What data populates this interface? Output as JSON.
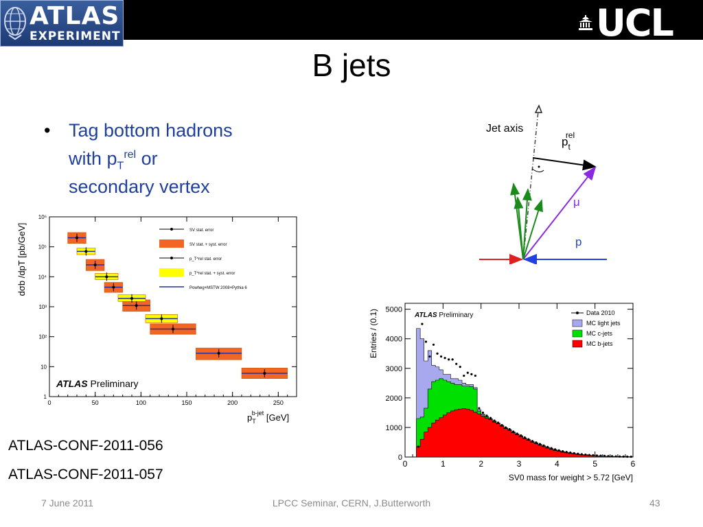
{
  "header": {
    "atlas_logo": {
      "line1": "ATLAS",
      "line2": "EXPERIMENT"
    },
    "ucl_logo": "UCL"
  },
  "slide": {
    "title": "B jets",
    "bullet": {
      "line1": "Tag bottom hadrons",
      "line2_prefix": "with p",
      "line2_sub": "T",
      "line2_sup": "rel",
      "line2_suffix": " or",
      "line3": "secondary vertex"
    },
    "refs": [
      "ATLAS-CONF-2011-056",
      "ATLAS-CONF-2011-057"
    ]
  },
  "footer": {
    "date": "7 June 2011",
    "center": "LPCC Seminar, CERN, J.Butterworth",
    "page": "43"
  },
  "diagram": {
    "jet_axis_label": "Jet axis",
    "pt_label": "p",
    "pt_sub": "t",
    "pt_sup": "rel",
    "mu_label": "μ",
    "p_label": "p",
    "colors": {
      "arrow_black": "#000000",
      "arrow_purple": "#8a2be2",
      "arrow_green": "#1a8a1a",
      "arrow_red": "#e02020",
      "arrow_blue": "#2040e0"
    }
  },
  "chart_data": [
    {
      "type": "scatter",
      "ylabel": "dσb /dpT  [pb/GeV]",
      "xlabel": "p_T^{b-jet} [GeV]",
      "log_y": true,
      "xlim": [
        0,
        270
      ],
      "ylim": [
        1,
        1000000
      ],
      "x_ticks": [
        "0",
        "50",
        "100",
        "150",
        "200",
        "250"
      ],
      "y_ticks": [
        "1",
        "10",
        "10²",
        "10³",
        "10⁴",
        "10⁵",
        "10⁶"
      ],
      "atlas_label": "ATLAS",
      "atlas_label2": "Preliminary",
      "legend": [
        {
          "label": "SV stat. error",
          "style": "tri-marker"
        },
        {
          "label": "SV stat. + syst. error",
          "style": "orange-box"
        },
        {
          "label": "p_T^rel stat. error",
          "style": "dot-marker"
        },
        {
          "label": "p_T^rel stat. + syst. error",
          "style": "yellow-box"
        },
        {
          "label": "Powheg+MSTW 2008+Pythia 6",
          "style": "blue-line"
        }
      ],
      "series": [
        {
          "name": "SV",
          "color": "#f26522",
          "bins": [
            {
              "x0": 20,
              "x1": 40,
              "y": 200000,
              "lo": 130000,
              "hi": 300000
            },
            {
              "x0": 40,
              "x1": 60,
              "y": 25000,
              "lo": 16000,
              "hi": 38000
            },
            {
              "x0": 60,
              "x1": 80,
              "y": 4500,
              "lo": 3000,
              "hi": 6500
            },
            {
              "x0": 80,
              "x1": 110,
              "y": 1100,
              "lo": 700,
              "hi": 1700
            },
            {
              "x0": 110,
              "x1": 160,
              "y": 180,
              "lo": 120,
              "hi": 270
            },
            {
              "x0": 160,
              "x1": 210,
              "y": 28,
              "lo": 17,
              "hi": 42
            },
            {
              "x0": 210,
              "x1": 260,
              "y": 6,
              "lo": 4,
              "hi": 9
            }
          ]
        },
        {
          "name": "p_T^rel",
          "color": "#ffff00",
          "bins": [
            {
              "x0": 30,
              "x1": 50,
              "y": 70000,
              "lo": 55000,
              "hi": 90000
            },
            {
              "x0": 50,
              "x1": 75,
              "y": 10000,
              "lo": 8000,
              "hi": 13000
            },
            {
              "x0": 75,
              "x1": 105,
              "y": 1900,
              "lo": 1500,
              "hi": 2500
            },
            {
              "x0": 105,
              "x1": 140,
              "y": 400,
              "lo": 290,
              "hi": 550
            }
          ]
        }
      ]
    },
    {
      "type": "area",
      "ylabel": "Entries / (0.1)",
      "xlabel": "SV0 mass for weight > 5.72 [GeV]",
      "xlim": [
        0,
        6
      ],
      "ylim": [
        0,
        5200
      ],
      "x_ticks": [
        "0",
        "1",
        "2",
        "3",
        "4",
        "5",
        "6"
      ],
      "y_ticks": [
        "0",
        "1000",
        "2000",
        "3000",
        "4000",
        "5000"
      ],
      "atlas_label": "ATLAS",
      "atlas_label2": "Preliminary",
      "legend": [
        {
          "label": "Data 2010",
          "color": "#000000"
        },
        {
          "label": "MC light jets",
          "color": "#a8a8ef"
        },
        {
          "label": "MC c-jets",
          "color": "#00e000"
        },
        {
          "label": "MC b-jets",
          "color": "#ff0000"
        }
      ],
      "x": [
        0.25,
        0.35,
        0.45,
        0.55,
        0.65,
        0.75,
        0.85,
        0.95,
        1.05,
        1.15,
        1.25,
        1.35,
        1.45,
        1.55,
        1.65,
        1.75,
        1.85,
        1.95,
        2.05,
        2.15,
        2.25,
        2.35,
        2.45,
        2.55,
        2.65,
        2.75,
        2.85,
        2.95,
        3.05,
        3.15,
        3.25,
        3.35,
        3.45,
        3.55,
        3.65,
        3.75,
        3.85,
        3.95,
        4.05,
        4.15,
        4.25,
        4.35,
        4.45,
        4.55,
        4.65,
        4.75,
        4.85,
        4.95,
        5.05,
        5.15,
        5.25,
        5.35,
        5.45,
        5.55,
        5.65,
        5.75,
        5.85,
        5.95
      ],
      "series": [
        {
          "name": "MC b-jets",
          "values": [
            0,
            350,
            600,
            850,
            1000,
            1150,
            1250,
            1330,
            1420,
            1500,
            1560,
            1600,
            1620,
            1640,
            1620,
            1580,
            1520,
            1460,
            1380,
            1320,
            1260,
            1180,
            1120,
            1040,
            960,
            900,
            820,
            750,
            690,
            620,
            560,
            500,
            450,
            400,
            350,
            300,
            260,
            220,
            190,
            160,
            140,
            120,
            100,
            85,
            72,
            60,
            50,
            42,
            36,
            30,
            25,
            20,
            17,
            14,
            12,
            10,
            8,
            6
          ]
        },
        {
          "name": "MC c-jets",
          "values": [
            0,
            1300,
            1350,
            1650,
            2300,
            2550,
            2600,
            2650,
            2600,
            2550,
            2500,
            2450,
            2450,
            2400,
            2400,
            2380,
            2300,
            1550,
            1420,
            1350,
            1280,
            1200,
            1130,
            1050,
            970,
            910,
            830,
            760,
            700,
            630,
            570,
            510,
            460,
            410,
            360,
            310,
            270,
            230,
            200,
            170,
            145,
            125,
            105,
            88,
            75,
            62,
            52,
            44,
            38,
            32,
            26,
            21,
            18,
            15,
            13,
            11,
            9,
            7
          ]
        },
        {
          "name": "MC light jets",
          "values": [
            0,
            4350,
            4000,
            3250,
            3600,
            3100,
            3050,
            2950,
            2800,
            2800,
            2650,
            2650,
            2600,
            2500,
            2450,
            2450,
            2350,
            1600,
            1450,
            1370,
            1300,
            1220,
            1150,
            1070,
            990,
            930,
            850,
            780,
            720,
            650,
            590,
            530,
            480,
            430,
            380,
            330,
            290,
            250,
            215,
            185,
            160,
            140,
            118,
            100,
            85,
            72,
            60,
            50,
            42,
            35,
            29,
            23,
            20,
            17,
            14,
            12,
            10,
            8
          ]
        },
        {
          "name": "Data 2010",
          "values": [
            0,
            350,
            4500,
            3900,
            3400,
            3800,
            3500,
            3400,
            3350,
            3300,
            3300,
            3150,
            3050,
            2750,
            2850,
            2800,
            2750,
            1650,
            1500,
            1400,
            1320,
            1230,
            1160,
            1080,
            1000,
            940,
            860,
            790,
            730,
            660,
            600,
            540,
            490,
            440,
            390,
            340,
            300,
            260,
            225,
            195,
            170,
            150,
            128,
            110,
            94,
            80,
            68,
            58,
            50,
            43,
            37,
            31,
            26,
            22,
            18,
            15,
            12,
            10
          ]
        }
      ]
    }
  ]
}
